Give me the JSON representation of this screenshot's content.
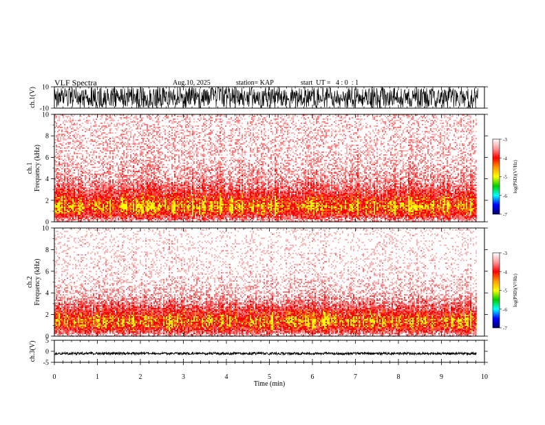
{
  "header": {
    "title": "VLF Spectra",
    "date": "Aug.10, 2025",
    "station": "station= KAP",
    "start_ut": "start  UT =   4 : 0  : 1"
  },
  "chart_data": [
    {
      "type": "line",
      "name": "ch1-waveform",
      "ylabel": "ch.1(V)",
      "ylim": [
        -10,
        10
      ],
      "yticks": [
        "10",
        "-10"
      ],
      "xlim": [
        0,
        10
      ]
    },
    {
      "type": "heatmap",
      "name": "ch1-spectrogram",
      "ylabel_line1": "ch.1",
      "ylabel_line2": "Frequency  (kHz)",
      "ylim": [
        0,
        10
      ],
      "yticks": [
        "0",
        "2",
        "4",
        "6",
        "8",
        "10"
      ],
      "data_end_min": 9.82,
      "intensity_profile_khz": [
        [
          0.0,
          0.15
        ],
        [
          0.5,
          0.5
        ],
        [
          1.0,
          0.72
        ],
        [
          1.5,
          0.85
        ],
        [
          2.0,
          0.7
        ],
        [
          2.6,
          0.55
        ],
        [
          3.2,
          0.42
        ],
        [
          4.0,
          0.3
        ],
        [
          6.0,
          0.2
        ],
        [
          10.0,
          0.16
        ]
      ],
      "colorbar": {
        "label": "log(PSD)(V²/Hz)",
        "ticks": [
          "-3",
          "-4",
          "-5",
          "-6",
          "-7"
        ],
        "colors": [
          "#ffffff",
          "#ff9a9a",
          "#ff0000",
          "#ff9900",
          "#ffff00",
          "#00cc00",
          "#00ffff",
          "#0000ff",
          "#000066"
        ]
      }
    },
    {
      "type": "heatmap",
      "name": "ch2-spectrogram",
      "ylabel_line1": "ch.2",
      "ylabel_line2": "Frequency  (kHz)",
      "ylim": [
        0,
        10
      ],
      "yticks": [
        "0",
        "2",
        "4",
        "6",
        "8",
        "10"
      ],
      "data_end_min": 9.82,
      "intensity_profile_khz": [
        [
          0.0,
          0.15
        ],
        [
          0.5,
          0.5
        ],
        [
          1.0,
          0.72
        ],
        [
          1.5,
          0.82
        ],
        [
          2.0,
          0.66
        ],
        [
          2.6,
          0.48
        ],
        [
          3.2,
          0.34
        ],
        [
          4.0,
          0.22
        ],
        [
          6.0,
          0.13
        ],
        [
          10.0,
          0.1
        ]
      ],
      "colorbar": {
        "label": "log(PSD)(V²/Hz)",
        "ticks": [
          "-3",
          "-4",
          "-5",
          "-6",
          "-7"
        ],
        "colors": [
          "#ffffff",
          "#ff9a9a",
          "#ff0000",
          "#ff9900",
          "#ffff00",
          "#00cc00",
          "#00ffff",
          "#0000ff",
          "#000066"
        ]
      }
    },
    {
      "type": "line",
      "name": "ch3-waveform",
      "ylabel": "ch.3(V)",
      "ylim": [
        -5,
        5
      ],
      "yticks": [
        "5",
        "0",
        "-5"
      ],
      "level": -1,
      "xlim": [
        0,
        10
      ],
      "xlabel": "Time  (min)",
      "xticks": [
        "0",
        "1",
        "2",
        "3",
        "4",
        "5",
        "6",
        "7",
        "8",
        "9",
        "10"
      ]
    }
  ]
}
